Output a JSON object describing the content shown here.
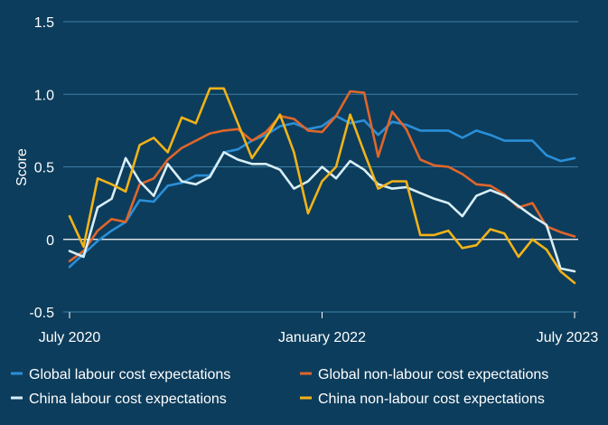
{
  "chart_data": {
    "type": "line",
    "title": "",
    "xlabel": "",
    "ylabel": "Score",
    "ylim": [
      -0.5,
      1.5
    ],
    "yticks": [
      "1.5",
      "1.0",
      "0.5",
      "0",
      "-0.5"
    ],
    "grid": true,
    "legend_position": "bottom",
    "x": [
      "2020-07",
      "2020-08",
      "2020-09",
      "2020-10",
      "2020-11",
      "2020-12",
      "2021-01",
      "2021-02",
      "2021-03",
      "2021-04",
      "2021-05",
      "2021-06",
      "2021-07",
      "2021-08",
      "2021-09",
      "2021-10",
      "2021-11",
      "2021-12",
      "2022-01",
      "2022-02",
      "2022-03",
      "2022-04",
      "2022-05",
      "2022-06",
      "2022-07",
      "2022-08",
      "2022-09",
      "2022-10",
      "2022-11",
      "2022-12",
      "2023-01",
      "2023-02",
      "2023-03",
      "2023-04",
      "2023-05",
      "2023-06",
      "2023-07"
    ],
    "xtick_labels": [
      {
        "label": "July 2020",
        "x": "2020-07"
      },
      {
        "label": "January 2022",
        "x": "2022-01"
      },
      {
        "label": "July 2023",
        "x": "2023-07"
      }
    ],
    "series": [
      {
        "name": "Global labour cost expectations",
        "color": "#2a8fd8",
        "values": [
          -0.19,
          -0.1,
          -0.01,
          0.06,
          0.12,
          0.27,
          0.26,
          0.37,
          0.39,
          0.44,
          0.44,
          0.6,
          0.62,
          0.68,
          0.72,
          0.78,
          0.8,
          0.76,
          0.78,
          0.85,
          0.8,
          0.82,
          0.72,
          0.81,
          0.79,
          0.75,
          0.75,
          0.75,
          0.7,
          0.75,
          0.72,
          0.68,
          0.68,
          0.68,
          0.58,
          0.54,
          0.56
        ]
      },
      {
        "name": "Global non-labour cost expectations",
        "color": "#e0662a",
        "values": [
          -0.15,
          -0.08,
          0.06,
          0.14,
          0.12,
          0.38,
          0.42,
          0.55,
          0.63,
          0.68,
          0.73,
          0.75,
          0.76,
          0.68,
          0.74,
          0.85,
          0.83,
          0.75,
          0.74,
          0.85,
          1.02,
          1.01,
          0.57,
          0.88,
          0.76,
          0.55,
          0.51,
          0.5,
          0.45,
          0.38,
          0.37,
          0.31,
          0.22,
          0.25,
          0.09,
          0.05,
          0.02
        ]
      },
      {
        "name": "China labour cost expectations",
        "color": "#d8eef6",
        "values": [
          -0.08,
          -0.12,
          0.22,
          0.28,
          0.56,
          0.4,
          0.3,
          0.52,
          0.4,
          0.38,
          0.43,
          0.6,
          0.55,
          0.52,
          0.52,
          0.48,
          0.35,
          0.4,
          0.5,
          0.42,
          0.54,
          0.48,
          0.38,
          0.35,
          0.36,
          0.32,
          0.28,
          0.25,
          0.16,
          0.3,
          0.34,
          0.3,
          0.23,
          0.16,
          0.1,
          -0.2,
          -0.22
        ]
      },
      {
        "name": "China non-labour cost expectations",
        "color": "#f2b318",
        "values": [
          0.16,
          -0.05,
          0.42,
          0.38,
          0.33,
          0.65,
          0.7,
          0.6,
          0.84,
          0.8,
          1.04,
          1.04,
          0.8,
          0.56,
          0.7,
          0.86,
          0.6,
          0.18,
          0.4,
          0.5,
          0.86,
          0.6,
          0.35,
          0.4,
          0.4,
          0.03,
          0.03,
          0.06,
          -0.06,
          -0.04,
          0.07,
          0.04,
          -0.12,
          0.0,
          -0.07,
          -0.22,
          -0.3
        ]
      }
    ]
  }
}
